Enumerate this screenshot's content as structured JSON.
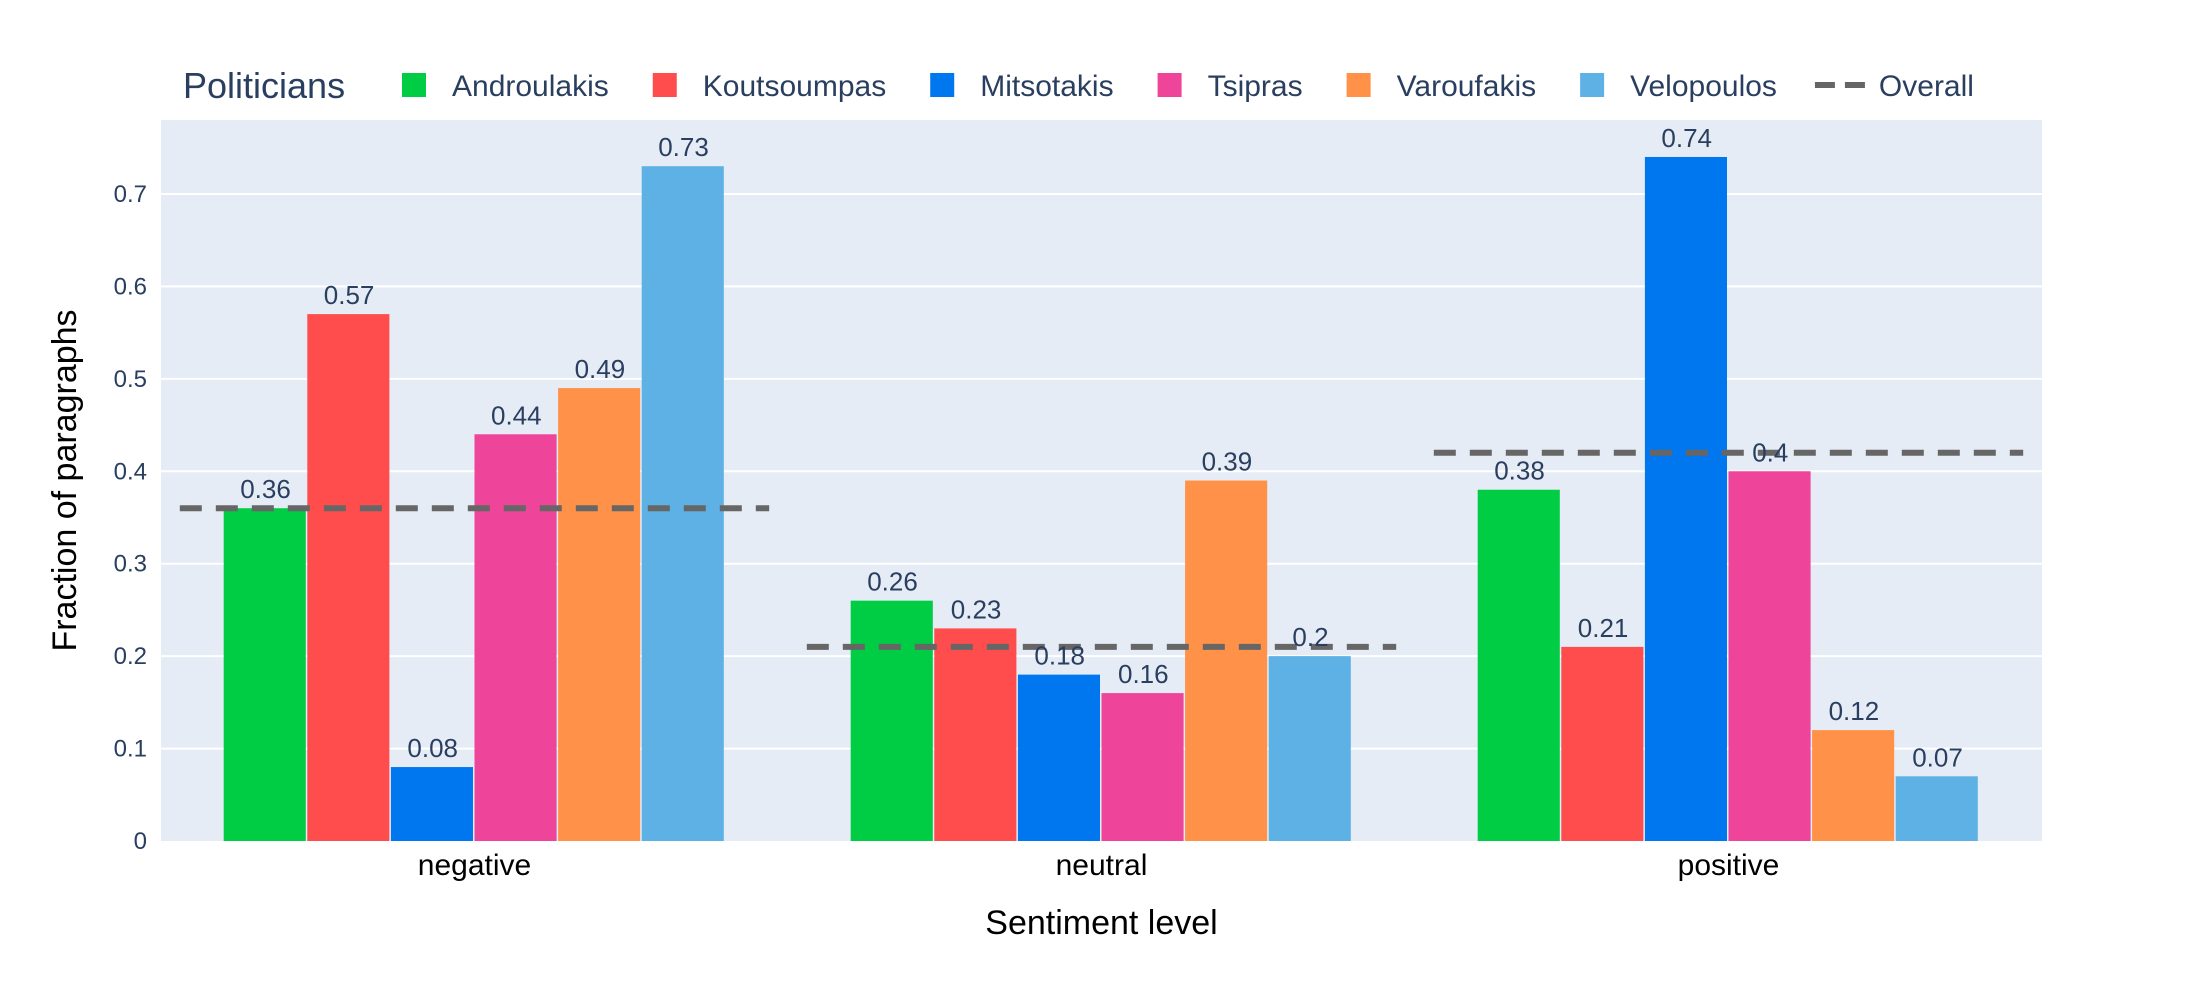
{
  "chart_data": {
    "type": "bar",
    "title": "",
    "xlabel": "Sentiment level",
    "ylabel": "Fraction of paragraphs",
    "ylim": [
      0,
      0.78
    ],
    "yticks": [
      0,
      0.1,
      0.2,
      0.3,
      0.4,
      0.5,
      0.6,
      0.7
    ],
    "ytick_labels": [
      "0",
      "0.1",
      "0.2",
      "0.3",
      "0.4",
      "0.5",
      "0.6",
      "0.7"
    ],
    "grid": true,
    "legend": {
      "title": "Politicians",
      "placement": "top",
      "overall_label": "Overall"
    },
    "categories": [
      "negative",
      "neutral",
      "positive"
    ],
    "series": [
      {
        "name": "Androulakis",
        "color": "#00cc44",
        "values": [
          0.36,
          0.26,
          0.38
        ],
        "labels": [
          "0.36",
          "0.26",
          "0.38"
        ]
      },
      {
        "name": "Koutsoumpas",
        "color": "#ff4d4d",
        "values": [
          0.57,
          0.23,
          0.21
        ],
        "labels": [
          "0.57",
          "0.23",
          "0.21"
        ]
      },
      {
        "name": "Mitsotakis",
        "color": "#0077ee",
        "values": [
          0.08,
          0.18,
          0.74
        ],
        "labels": [
          "0.08",
          "0.18",
          "0.74"
        ]
      },
      {
        "name": "Tsipras",
        "color": "#ee4499",
        "values": [
          0.44,
          0.16,
          0.4
        ],
        "labels": [
          "0.44",
          "0.16",
          "0.4"
        ]
      },
      {
        "name": "Varoufakis",
        "color": "#ff9248",
        "values": [
          0.49,
          0.39,
          0.12
        ],
        "labels": [
          "0.49",
          "0.39",
          "0.12"
        ]
      },
      {
        "name": "Velopoulos",
        "color": "#5db1e4",
        "values": [
          0.73,
          0.2,
          0.07
        ],
        "labels": [
          "0.73",
          "0.2",
          "0.07"
        ]
      }
    ],
    "overall": {
      "name": "Overall",
      "color": "#666666",
      "values": [
        0.36,
        0.21,
        0.42
      ]
    }
  },
  "colors": {
    "plot_background": "#e5ecf6",
    "gridline": "#ffffff",
    "axis_text": "#2a3f5f"
  }
}
